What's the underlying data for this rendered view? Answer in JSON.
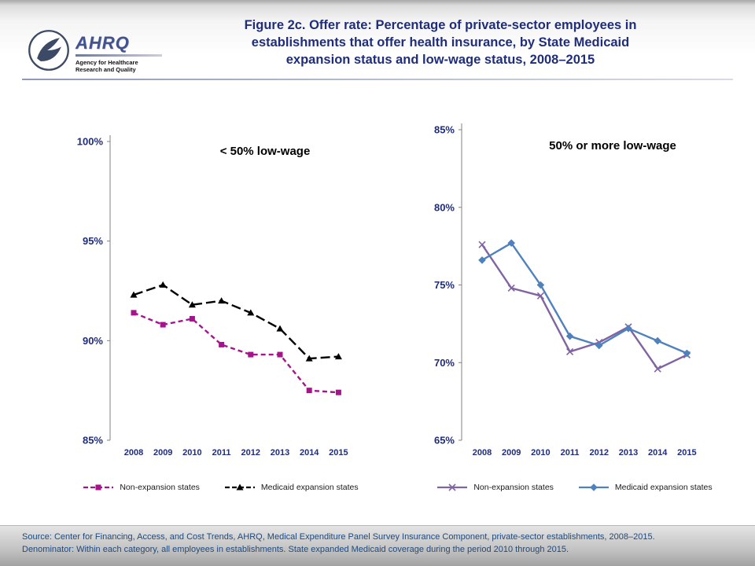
{
  "header": {
    "title_lines": [
      "Figure 2c. Offer rate: Percentage of private-sector employees in",
      "establishments that offer health insurance, by State Medicaid",
      "expansion status and low-wage status, 2008–2015"
    ],
    "logo": {
      "ahrq": "AHRQ",
      "tagline1": "Agency for Healthcare",
      "tagline2": "Research and Quality"
    }
  },
  "colors": {
    "title_navy": "#1f2d7a",
    "axis_label_navy": "#1f2d7a",
    "footer_blue": "#1F497D",
    "non_expansion_left": "#A6148C",
    "expansion_left": "#000000",
    "non_expansion_right": "#8064A2",
    "expansion_right": "#4F81BD"
  },
  "footer": {
    "line1": "Source: Center for Financing, Access, and Cost Trends, AHRQ, Medical Expenditure Panel Survey Insurance Component, private-sector establishments, 2008–2015.",
    "line2": "Denominator: Within each category, all employees in establishments. State expanded Medicaid coverage during the period 2010 through 2015."
  },
  "chart_data": [
    {
      "type": "line",
      "title": "< 50% low-wage",
      "x": [
        2008,
        2009,
        2010,
        2011,
        2012,
        2013,
        2014,
        2015
      ],
      "ylim": [
        85,
        100
      ],
      "yticks": [
        85,
        90,
        95,
        100
      ],
      "ytick_suffix": "%",
      "grid": false,
      "legend_position": "bottom",
      "series": [
        {
          "name": "Non-expansion states",
          "color": "#A6148C",
          "dash": "dashed",
          "marker": "square",
          "values": [
            91.4,
            90.8,
            91.1,
            89.8,
            89.3,
            89.3,
            87.5,
            87.4
          ]
        },
        {
          "name": "Medicaid expansion states",
          "color": "#000000",
          "dash": "dashed",
          "marker": "triangle",
          "values": [
            92.3,
            92.8,
            91.8,
            92.0,
            91.4,
            90.6,
            89.1,
            89.2
          ]
        }
      ]
    },
    {
      "type": "line",
      "title": "50% or more low-wage",
      "x": [
        2008,
        2009,
        2010,
        2011,
        2012,
        2013,
        2014,
        2015
      ],
      "ylim": [
        65,
        85
      ],
      "yticks": [
        65,
        70,
        75,
        80,
        85
      ],
      "ytick_suffix": "%",
      "grid": false,
      "legend_position": "bottom",
      "series": [
        {
          "name": "Non-expansion states",
          "color": "#8064A2",
          "dash": "solid",
          "marker": "x",
          "values": [
            77.6,
            74.8,
            74.3,
            70.7,
            71.3,
            72.3,
            69.6,
            70.5
          ]
        },
        {
          "name": "Medicaid expansion states",
          "color": "#4F81BD",
          "dash": "solid",
          "marker": "diamond",
          "values": [
            76.6,
            77.7,
            75.0,
            71.7,
            71.1,
            72.2,
            71.4,
            70.6
          ]
        }
      ]
    }
  ]
}
